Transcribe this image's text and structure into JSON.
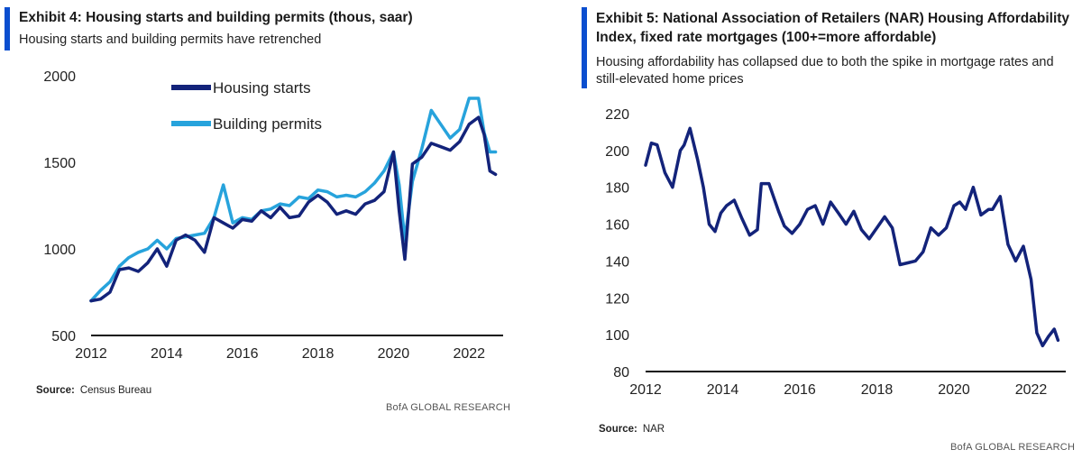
{
  "left": {
    "title": "Exhibit 4: Housing starts and building permits (thous, saar)",
    "subtitle": "Housing starts and building permits have retrenched",
    "source_label": "Source:",
    "source_text": "Census Bureau",
    "brand": "BofA GLOBAL RESEARCH"
  },
  "right": {
    "title": "Exhibit 5: National Association of Retailers (NAR) Housing Affordability Index, fixed rate mortgages (100+=more  affordable)",
    "subtitle": "Housing affordability has collapsed due to both the spike in mortgage rates and still-elevated home prices",
    "source_label": "Source:",
    "source_text": "NAR",
    "brand": "BofA GLOBAL RESEARCH"
  },
  "colors": {
    "accent": "#0a4ecf",
    "starts": "#13237a",
    "permits": "#27a3dc",
    "nar": "#13237a"
  },
  "chart_data": [
    {
      "type": "line",
      "title": "Housing starts and building permits (thous, saar)",
      "xlabel": "",
      "ylabel": "",
      "xlim": [
        2012.0,
        2022.9
      ],
      "ylim": [
        500,
        2000
      ],
      "xticks": [
        2012,
        2014,
        2016,
        2018,
        2020,
        2022
      ],
      "yticks": [
        500,
        1000,
        1500,
        2000
      ],
      "legend_position": "top-left",
      "series": [
        {
          "name": "Housing starts",
          "x": [
            2012.0,
            2012.25,
            2012.5,
            2012.75,
            2013.0,
            2013.25,
            2013.5,
            2013.75,
            2014.0,
            2014.25,
            2014.5,
            2014.75,
            2015.0,
            2015.25,
            2015.5,
            2015.75,
            2016.0,
            2016.25,
            2016.5,
            2016.75,
            2017.0,
            2017.25,
            2017.5,
            2017.75,
            2018.0,
            2018.25,
            2018.5,
            2018.75,
            2019.0,
            2019.25,
            2019.5,
            2019.75,
            2020.0,
            2020.15,
            2020.3,
            2020.5,
            2020.75,
            2021.0,
            2021.25,
            2021.5,
            2021.75,
            2022.0,
            2022.25,
            2022.4,
            2022.55,
            2022.7
          ],
          "values": [
            700,
            710,
            750,
            880,
            890,
            870,
            920,
            1000,
            900,
            1050,
            1080,
            1050,
            980,
            1180,
            1150,
            1120,
            1170,
            1160,
            1220,
            1180,
            1240,
            1180,
            1190,
            1270,
            1310,
            1270,
            1200,
            1220,
            1200,
            1260,
            1280,
            1330,
            1560,
            1220,
            940,
            1490,
            1530,
            1610,
            1590,
            1570,
            1620,
            1720,
            1760,
            1660,
            1450,
            1430
          ]
        },
        {
          "name": "Building permits",
          "x": [
            2012.0,
            2012.25,
            2012.5,
            2012.75,
            2013.0,
            2013.25,
            2013.5,
            2013.75,
            2014.0,
            2014.25,
            2014.5,
            2014.75,
            2015.0,
            2015.25,
            2015.5,
            2015.75,
            2016.0,
            2016.25,
            2016.5,
            2016.75,
            2017.0,
            2017.25,
            2017.5,
            2017.75,
            2018.0,
            2018.25,
            2018.5,
            2018.75,
            2019.0,
            2019.25,
            2019.5,
            2019.75,
            2020.0,
            2020.15,
            2020.3,
            2020.5,
            2020.75,
            2021.0,
            2021.25,
            2021.5,
            2021.75,
            2022.0,
            2022.25,
            2022.4,
            2022.55,
            2022.7
          ],
          "values": [
            700,
            760,
            810,
            900,
            950,
            980,
            1000,
            1050,
            1000,
            1060,
            1070,
            1080,
            1090,
            1180,
            1370,
            1150,
            1180,
            1170,
            1220,
            1230,
            1260,
            1250,
            1300,
            1290,
            1340,
            1330,
            1300,
            1310,
            1300,
            1330,
            1380,
            1450,
            1560,
            1370,
            1050,
            1390,
            1580,
            1800,
            1720,
            1640,
            1690,
            1870,
            1870,
            1670,
            1560,
            1560
          ]
        }
      ]
    },
    {
      "type": "line",
      "title": "NAR Housing Affordability Index, fixed rate mortgages (100+=more affordable)",
      "xlabel": "",
      "ylabel": "",
      "xlim": [
        2012.0,
        2022.9
      ],
      "ylim": [
        80,
        220
      ],
      "xticks": [
        2012,
        2014,
        2016,
        2018,
        2020,
        2022
      ],
      "yticks": [
        80,
        100,
        120,
        140,
        160,
        180,
        200,
        220
      ],
      "series": [
        {
          "name": "NAR Housing Affordability Index",
          "x": [
            2012.0,
            2012.15,
            2012.3,
            2012.5,
            2012.7,
            2012.9,
            2013.0,
            2013.15,
            2013.35,
            2013.5,
            2013.65,
            2013.8,
            2013.95,
            2014.1,
            2014.3,
            2014.5,
            2014.7,
            2014.9,
            2015.0,
            2015.2,
            2015.45,
            2015.6,
            2015.8,
            2016.0,
            2016.2,
            2016.4,
            2016.6,
            2016.8,
            2017.0,
            2017.2,
            2017.4,
            2017.6,
            2017.8,
            2018.0,
            2018.2,
            2018.4,
            2018.6,
            2018.8,
            2019.0,
            2019.2,
            2019.4,
            2019.6,
            2019.8,
            2020.0,
            2020.15,
            2020.3,
            2020.5,
            2020.7,
            2020.9,
            2021.0,
            2021.2,
            2021.4,
            2021.6,
            2021.8,
            2022.0,
            2022.15,
            2022.3,
            2022.45,
            2022.6,
            2022.7
          ],
          "values": [
            192,
            204,
            203,
            188,
            180,
            200,
            203,
            212,
            195,
            180,
            160,
            156,
            166,
            170,
            173,
            163,
            154,
            157,
            182,
            182,
            167,
            159,
            155,
            160,
            168,
            170,
            160,
            172,
            166,
            160,
            167,
            157,
            152,
            158,
            164,
            158,
            138,
            139,
            140,
            145,
            158,
            154,
            158,
            170,
            172,
            168,
            180,
            165,
            168,
            168,
            175,
            149,
            140,
            148,
            130,
            101,
            94,
            99,
            103,
            97
          ]
        }
      ]
    }
  ]
}
